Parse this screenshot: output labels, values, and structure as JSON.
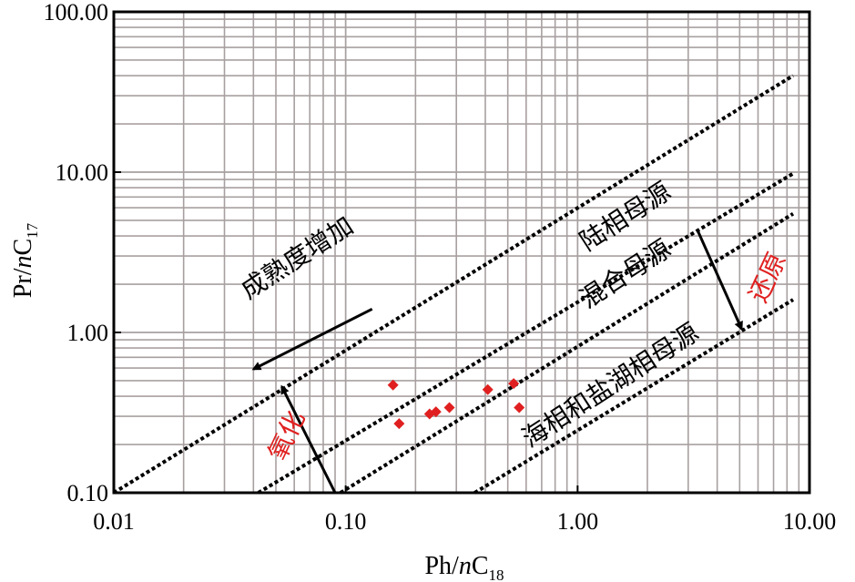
{
  "chart_data": {
    "type": "scatter",
    "x_scale": "log",
    "y_scale": "log",
    "xlim": [
      0.01,
      10
    ],
    "ylim": [
      0.1,
      100
    ],
    "grid": true,
    "xlabel": {
      "main": "Ph/",
      "italic": "n",
      "rest": "C",
      "sub": "18"
    },
    "ylabel": {
      "main": "Pr/",
      "italic": "n",
      "rest": "C",
      "sub": "17"
    },
    "x_ticks": [
      {
        "value": 0.01,
        "label": "0.01"
      },
      {
        "value": 0.1,
        "label": "0.10"
      },
      {
        "value": 1,
        "label": "1.00"
      },
      {
        "value": 10,
        "label": "10.00"
      }
    ],
    "y_ticks": [
      {
        "value": 0.1,
        "label": "0.10"
      },
      {
        "value": 1,
        "label": "1.00"
      },
      {
        "value": 10,
        "label": "10.00"
      },
      {
        "value": 100,
        "label": "100.00"
      }
    ],
    "points_color": "#e02020",
    "points": [
      {
        "x": 0.16,
        "y": 0.47
      },
      {
        "x": 0.17,
        "y": 0.27
      },
      {
        "x": 0.23,
        "y": 0.31
      },
      {
        "x": 0.245,
        "y": 0.32
      },
      {
        "x": 0.28,
        "y": 0.34
      },
      {
        "x": 0.41,
        "y": 0.44
      },
      {
        "x": 0.53,
        "y": 0.48
      },
      {
        "x": 0.56,
        "y": 0.34
      }
    ],
    "boundary_lines": [
      {
        "from": [
          0.01,
          0.1
        ],
        "to": [
          8.5,
          40
        ]
      },
      {
        "from": [
          0.042,
          0.1
        ],
        "to": [
          8.5,
          9.8
        ]
      },
      {
        "from": [
          0.095,
          0.1
        ],
        "to": [
          8.5,
          5.5
        ]
      },
      {
        "from": [
          0.36,
          0.1
        ],
        "to": [
          8.5,
          1.6
        ]
      }
    ],
    "arrows": [
      {
        "from": [
          0.13,
          1.4
        ],
        "to": [
          0.04,
          0.59
        ]
      },
      {
        "from": [
          0.09,
          0.1
        ],
        "to": [
          0.053,
          0.46
        ]
      },
      {
        "from": [
          3.3,
          4.3
        ],
        "to": [
          5.1,
          1.05
        ]
      }
    ],
    "annotations": [
      {
        "text": "成熟度增加",
        "x": 0.038,
        "y": 1.6,
        "angle": -33,
        "color": "#000000"
      },
      {
        "text": "陆相母源",
        "x": 1.1,
        "y": 3.2,
        "angle": -33,
        "color": "#000000"
      },
      {
        "text": "混合母源",
        "x": 1.1,
        "y": 1.4,
        "angle": -33,
        "color": "#000000"
      },
      {
        "text": "海相和盐湖相母源",
        "x": 0.62,
        "y": 0.19,
        "angle": -33,
        "color": "#000000"
      },
      {
        "text": "氧化",
        "x": 0.054,
        "y": 0.155,
        "angle": -65,
        "color": "#e02020"
      },
      {
        "text": "还原",
        "x": 6.4,
        "y": 1.5,
        "angle": -65,
        "color": "#e02020"
      }
    ]
  }
}
